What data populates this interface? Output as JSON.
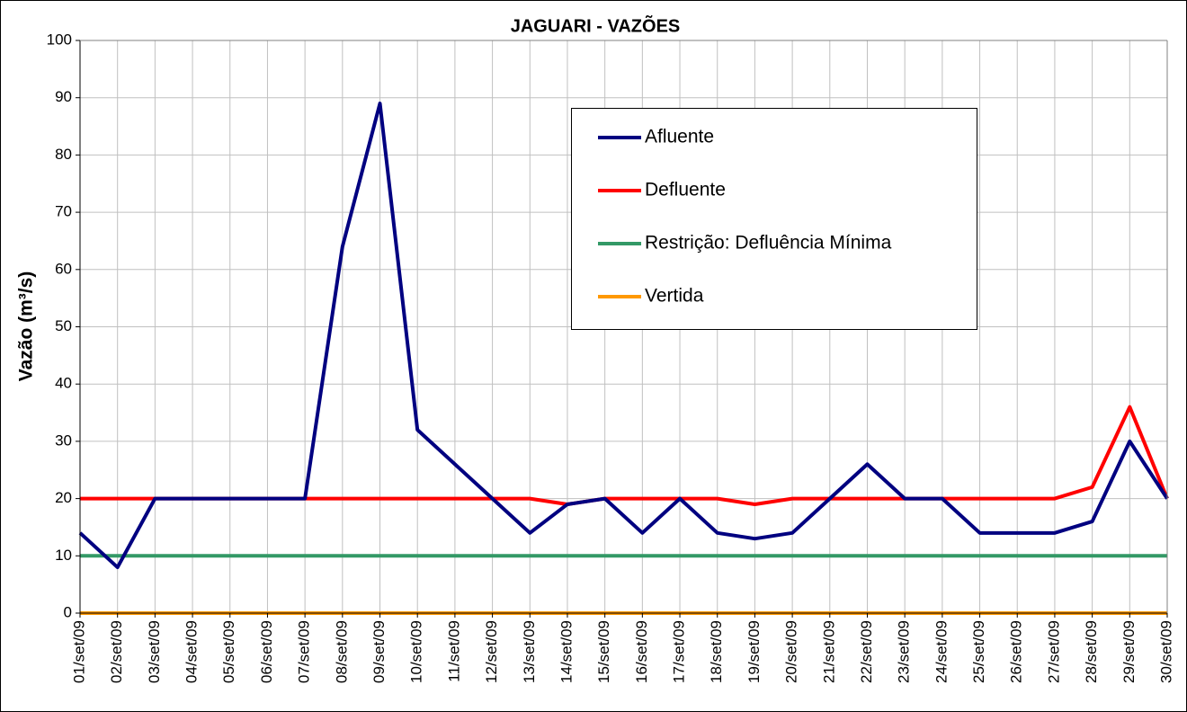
{
  "chart_data": {
    "type": "line",
    "title": "JAGUARI - VAZÕES",
    "y_label": "Vazão (m³/s)",
    "categories": [
      "01/set/09",
      "02/set/09",
      "03/set/09",
      "04/set/09",
      "05/set/09",
      "06/set/09",
      "07/set/09",
      "08/set/09",
      "09/set/09",
      "10/set/09",
      "11/set/09",
      "12/set/09",
      "13/set/09",
      "14/set/09",
      "15/set/09",
      "16/set/09",
      "17/set/09",
      "18/set/09",
      "19/set/09",
      "20/set/09",
      "21/set/09",
      "22/set/09",
      "23/set/09",
      "24/set/09",
      "25/set/09",
      "26/set/09",
      "27/set/09",
      "28/set/09",
      "29/set/09",
      "30/set/09"
    ],
    "series": [
      {
        "name": "Afluente",
        "color": "#000080",
        "values": [
          14,
          8,
          20,
          20,
          20,
          20,
          20,
          64,
          89,
          32,
          26,
          20,
          14,
          19,
          20,
          14,
          20,
          14,
          13,
          14,
          20,
          26,
          20,
          20,
          14,
          14,
          14,
          16,
          30,
          20
        ]
      },
      {
        "name": "Defluente",
        "color": "#ff0000",
        "values": [
          20,
          20,
          20,
          20,
          20,
          20,
          20,
          20,
          20,
          20,
          20,
          20,
          20,
          19,
          20,
          20,
          20,
          20,
          19,
          20,
          20,
          20,
          20,
          20,
          20,
          20,
          20,
          22,
          36,
          20
        ]
      },
      {
        "name": "Restrição: Defluência Mínima",
        "color": "#339966",
        "values": [
          10,
          10,
          10,
          10,
          10,
          10,
          10,
          10,
          10,
          10,
          10,
          10,
          10,
          10,
          10,
          10,
          10,
          10,
          10,
          10,
          10,
          10,
          10,
          10,
          10,
          10,
          10,
          10,
          10,
          10
        ]
      },
      {
        "name": "Vertida",
        "color": "#ff9900",
        "values": [
          0,
          0,
          0,
          0,
          0,
          0,
          0,
          0,
          0,
          0,
          0,
          0,
          0,
          0,
          0,
          0,
          0,
          0,
          0,
          0,
          0,
          0,
          0,
          0,
          0,
          0,
          0,
          0,
          0,
          0
        ]
      }
    ],
    "ylim": [
      0,
      100
    ],
    "yticks": [
      0,
      10,
      20,
      30,
      40,
      50,
      60,
      70,
      80,
      90,
      100
    ],
    "grid": true
  }
}
